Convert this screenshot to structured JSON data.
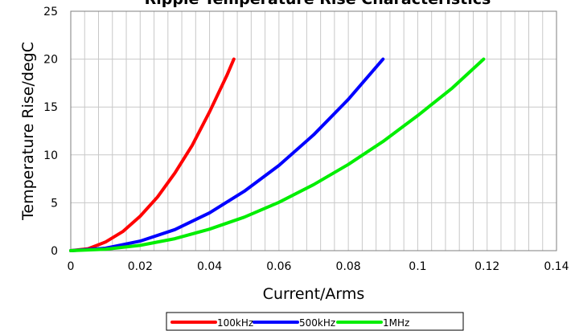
{
  "chart_data": {
    "type": "line",
    "title": "Ripple Temperature Rise Characteristics",
    "xlabel": "Current/Arms",
    "ylabel": "Temperature Rise/degC",
    "xlim": [
      0,
      0.14
    ],
    "ylim": [
      0,
      25
    ],
    "xticks": [
      0,
      0.02,
      0.04,
      0.06,
      0.08,
      0.1,
      0.12,
      0.14
    ],
    "xtick_labels": [
      "0",
      "0.02",
      "0.04",
      "0.06",
      "0.08",
      "0.1",
      "0.12",
      "0.14"
    ],
    "yticks": [
      0,
      5,
      10,
      15,
      20,
      25
    ],
    "ytick_labels": [
      "0",
      "5",
      "10",
      "15",
      "20",
      "25"
    ],
    "grid": true,
    "legend_position": "bottom",
    "series": [
      {
        "name": "100kHz",
        "color": "#ff0000",
        "x": [
          0,
          0.005,
          0.01,
          0.015,
          0.02,
          0.025,
          0.03,
          0.035,
          0.04,
          0.045,
          0.047
        ],
        "y": [
          0,
          0.2,
          0.9,
          2.0,
          3.6,
          5.6,
          8.1,
          11.0,
          14.5,
          18.3,
          20
        ]
      },
      {
        "name": "500kHz",
        "color": "#0000ff",
        "x": [
          0,
          0.01,
          0.02,
          0.03,
          0.04,
          0.05,
          0.06,
          0.07,
          0.08,
          0.09
        ],
        "y": [
          0,
          0.25,
          1.0,
          2.2,
          3.95,
          6.2,
          8.9,
          12.1,
          15.8,
          20
        ]
      },
      {
        "name": "1MHz",
        "color": "#00ee00",
        "x": [
          0,
          0.01,
          0.02,
          0.03,
          0.04,
          0.05,
          0.06,
          0.07,
          0.08,
          0.09,
          0.1,
          0.11,
          0.119
        ],
        "y": [
          0,
          0.15,
          0.55,
          1.25,
          2.25,
          3.5,
          5.05,
          6.9,
          9.0,
          11.4,
          14.1,
          17.0,
          20
        ]
      }
    ]
  }
}
